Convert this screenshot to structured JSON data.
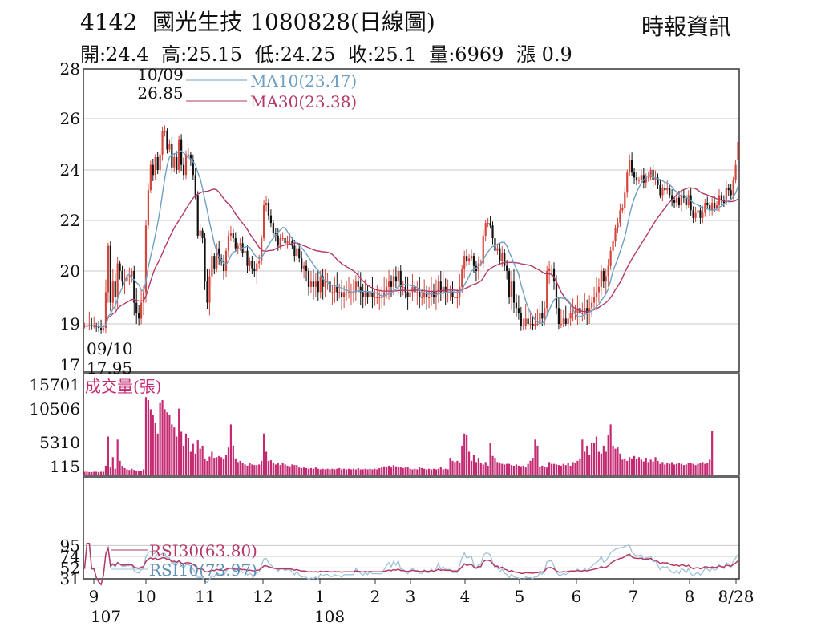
{
  "header": {
    "code": "4142",
    "name": "國光生技",
    "date": "1080828",
    "chart_kind": "(日線圖)",
    "ohlc": {
      "open": "開:24.4",
      "high": "高:25.15",
      "low": "低:24.25",
      "close": "收:25.1",
      "volume": "量:6969",
      "change": "漲 0.9"
    }
  },
  "source": "時報資訊",
  "colors": {
    "up": "#d4453c",
    "down": "#111111",
    "ma10": "#6f9fc4",
    "ma30": "#b33a68",
    "volume": "#c42a72",
    "rsi30": "#b33a68",
    "rsi10": "#9fc0dc",
    "grid": "#c8c8c8"
  },
  "chart_data": [
    {
      "type": "candlestick",
      "panel": "price",
      "y_ticks": [
        "28",
        "26",
        "24",
        "22",
        "20",
        "19",
        "17"
      ],
      "ma10_label": "MA10(23.47)",
      "ma30_label": "MA30(23.38)",
      "high_annotation": {
        "date": "10/09",
        "value": "26.85"
      },
      "low_annotation": {
        "date": "09/10",
        "value": "17.95"
      },
      "last_close": 25.1,
      "close_series": [
        18.9,
        18.9,
        18.95,
        18.9,
        18.9,
        18.85,
        18.8,
        18.7,
        18.8,
        19.6,
        21.0,
        19.4,
        19.8,
        19.5,
        20.3,
        20.0,
        19.8,
        19.8,
        19.9,
        19.9,
        20.0,
        19.4,
        19.2,
        19.1,
        19.4,
        19.6,
        21.8,
        23.2,
        24.2,
        23.8,
        24.5,
        24.0,
        24.6,
        25.5,
        25.5,
        24.8,
        25.0,
        24.1,
        24.5,
        24.0,
        25.2,
        24.2,
        23.8,
        24.6,
        24.6,
        24.4,
        23.8,
        23.0,
        21.4,
        21.6,
        21.3,
        19.8,
        19.4,
        19.9,
        20.6,
        20.1,
        20.9,
        20.5,
        20.4,
        20.0,
        20.8,
        21.4,
        21.5,
        21.3,
        20.9,
        21.0,
        21.1,
        20.7,
        20.8,
        20.2,
        20.4,
        20.1,
        20.0,
        20.3,
        20.4,
        21.3,
        22.6,
        22.7,
        22.2,
        21.9,
        21.5,
        21.4,
        21.0,
        21.3,
        21.3,
        21.1,
        21.2,
        21.2,
        21.0,
        20.6,
        20.9,
        20.5,
        20.1,
        20.2,
        20.0,
        19.7,
        19.8,
        19.7,
        19.8,
        19.6,
        19.9,
        19.7,
        19.8,
        19.8,
        19.6,
        19.6,
        19.7,
        19.6,
        19.6,
        19.5,
        19.6,
        19.6,
        19.6,
        19.6,
        19.6,
        19.8,
        19.7,
        19.6,
        19.5,
        19.6,
        19.5,
        19.6,
        19.5,
        19.5,
        19.5,
        19.5,
        19.5,
        19.6,
        19.7,
        19.8,
        19.7,
        19.9,
        19.8,
        20.0,
        19.7,
        19.7,
        19.6,
        19.5,
        19.6,
        19.7,
        19.6,
        19.6,
        19.5,
        19.5,
        19.6,
        19.5,
        19.5,
        19.6,
        19.5,
        19.6,
        19.8,
        19.6,
        19.7,
        19.6,
        19.6,
        19.6,
        19.5,
        19.5,
        19.5,
        19.7,
        20.1,
        20.6,
        20.4,
        20.5,
        20.6,
        20.2,
        20.0,
        20.3,
        20.3,
        21.4,
        21.9,
        21.9,
        21.8,
        21.3,
        20.8,
        20.9,
        20.4,
        20.7,
        20.2,
        20.0,
        19.5,
        19.8,
        19.4,
        19.3,
        19.2,
        18.9,
        18.9,
        19.1,
        19.0,
        19.0,
        18.9,
        19.0,
        19.0,
        19.2,
        19.1,
        19.3,
        20.0,
        20.1,
        20.1,
        19.8,
        19.3,
        19.0,
        19.0,
        19.1,
        19.0,
        19.1,
        19.2,
        19.2,
        19.2,
        19.3,
        19.2,
        19.2,
        19.3,
        19.2,
        19.3,
        19.4,
        19.5,
        19.6,
        19.7,
        20.0,
        19.8,
        19.9,
        20.2,
        20.8,
        21.2,
        21.7,
        21.9,
        22.4,
        22.5,
        23.1,
        23.9,
        24.4,
        23.9,
        23.7,
        23.6,
        23.6,
        23.8,
        23.5,
        23.7,
        23.7,
        24.0,
        23.6,
        23.7,
        23.4,
        23.0,
        23.3,
        23.2,
        23.3,
        23.0,
        22.8,
        22.7,
        22.9,
        22.6,
        23.0,
        22.9,
        22.6,
        23.0,
        22.4,
        22.1,
        22.3,
        22.4,
        22.1,
        22.3,
        22.7,
        22.6,
        22.4,
        22.7,
        22.5,
        22.6,
        23.0,
        22.8,
        22.7,
        23.3,
        23.2,
        23.0,
        23.6,
        24.2,
        25.1
      ]
    },
    {
      "type": "bar",
      "panel": "volume",
      "title": "成交量(張)",
      "y_ticks": [
        "15701",
        "10506",
        "5310",
        "115"
      ],
      "ymax": 15701,
      "values": [
        200,
        200,
        150,
        150,
        200,
        200,
        150,
        200,
        200,
        1200,
        6000,
        900,
        2600,
        700,
        5500,
        2000,
        1200,
        800,
        600,
        500,
        700,
        500,
        400,
        300,
        400,
        600,
        12500,
        12000,
        10500,
        9500,
        8200,
        6500,
        11500,
        12000,
        10500,
        10000,
        9500,
        8000,
        7500,
        6000,
        10600,
        6800,
        4500,
        6500,
        5800,
        3500,
        4800,
        3200,
        5400,
        4000,
        4500,
        2400,
        2000,
        2700,
        3500,
        2500,
        2600,
        2800,
        2600,
        2300,
        3000,
        4200,
        8000,
        4500,
        2400,
        1800,
        2000,
        1600,
        1400,
        1200,
        1600,
        1400,
        1300,
        1300,
        1400,
        2000,
        6500,
        3500,
        2000,
        2100,
        1600,
        1400,
        1600,
        1300,
        1600,
        1400,
        1200,
        1100,
        1400,
        1300,
        1300,
        900,
        800,
        900,
        800,
        700,
        800,
        700,
        900,
        700,
        600,
        700,
        600,
        700,
        600,
        700,
        600,
        700,
        800,
        600,
        700,
        600,
        700,
        600,
        700,
        600,
        800,
        600,
        600,
        700,
        600,
        700,
        600,
        700,
        600,
        800,
        900,
        1100,
        1000,
        1200,
        900,
        1300,
        1100,
        1000,
        1000,
        800,
        900,
        1000,
        700,
        600,
        700,
        600,
        900,
        800,
        700,
        600,
        700,
        600,
        700,
        600,
        700,
        1000,
        600,
        700,
        600,
        2500,
        2000,
        1800,
        2000,
        1600,
        4500,
        6500,
        6200,
        3500,
        2000,
        3000,
        1800,
        2500,
        1600,
        1400,
        1800,
        1200,
        5000,
        2800,
        2500,
        1800,
        1600,
        1500,
        1400,
        1500,
        1500,
        1300,
        1200,
        1400,
        1200,
        1100,
        1200,
        900,
        1500,
        2000,
        2500,
        5500,
        4500,
        1000,
        1200,
        1000,
        900,
        1800,
        1500,
        1500,
        1400,
        1300,
        1200,
        1500,
        1300,
        1600,
        1200,
        1800,
        1600,
        2000,
        2400,
        5500,
        3500,
        4500,
        3000,
        5000,
        5000,
        6000,
        3500,
        3200,
        4500,
        3500,
        6300,
        8000,
        4500,
        4000,
        4200,
        3200,
        2200,
        2400,
        2000,
        2600,
        2400,
        2800,
        2300,
        2600,
        2200,
        1900,
        2500,
        1800,
        2200,
        1900,
        2600,
        2000,
        1500,
        1800,
        1400,
        1700,
        1500,
        1800,
        1400,
        1500,
        1700,
        1500,
        1300,
        1400,
        1700,
        1600,
        1500,
        1300,
        1500,
        1600,
        1800,
        1500,
        1600,
        2200,
        6969
      ]
    },
    {
      "type": "line",
      "panel": "rsi",
      "y_ticks": [
        "95",
        "74",
        "52",
        "31"
      ],
      "series": [
        {
          "name": "RSI30(63.80)",
          "color": "#b33a68"
        },
        {
          "name": "RSI10(73.97)",
          "color": "#9fc0dc"
        }
      ]
    }
  ],
  "x_axis": {
    "month_labels": [
      "9",
      "10",
      "11",
      "12",
      "1",
      "2",
      "3",
      "4",
      "5",
      "6",
      "7",
      "8",
      "8/28"
    ],
    "year_labels": [
      "107",
      "108"
    ]
  }
}
